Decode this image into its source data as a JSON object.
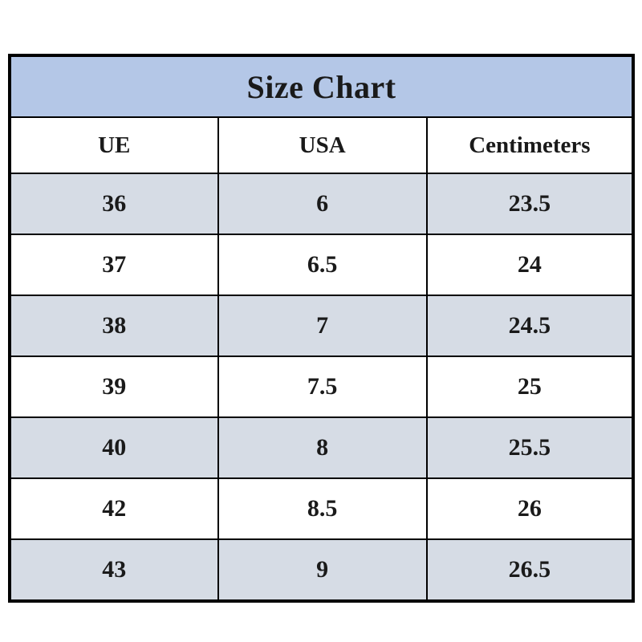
{
  "chart_data": {
    "type": "table",
    "title": "Size Chart",
    "columns": [
      "UE",
      "USA",
      "Centimeters"
    ],
    "rows": [
      [
        "36",
        "6",
        "23.5"
      ],
      [
        "37",
        "6.5",
        "24"
      ],
      [
        "38",
        "7",
        "24.5"
      ],
      [
        "39",
        "7.5",
        "25"
      ],
      [
        "40",
        "8",
        "25.5"
      ],
      [
        "42",
        "8.5",
        "26"
      ],
      [
        "43",
        "9",
        "26.5"
      ]
    ]
  },
  "colors": {
    "title_bg": "#b4c7e7",
    "row_alt_bg": "#d6dce5",
    "border": "#000000",
    "text": "#1a1a1a"
  }
}
